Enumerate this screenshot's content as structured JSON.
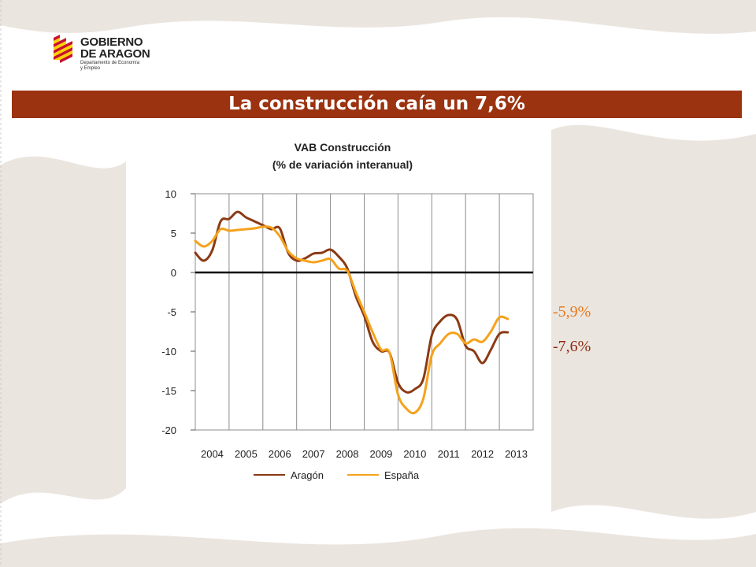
{
  "logo": {
    "name_line1": "GOBIERNO",
    "name_line2": "DE ARAGON",
    "dept_line1": "Departamento de Economía",
    "dept_line2": "y Empleo"
  },
  "header": {
    "title": "La construcción caía un 7,6%"
  },
  "annotations": {
    "espana_last": "-5,9%",
    "aragon_last": "-7,6%"
  },
  "colors": {
    "title_bar": "#9b3310",
    "aragon": "#8b3a14",
    "espana": "#f5a21c",
    "annotation_espana": "#e8781e",
    "annotation_aragon": "#8b2a10"
  },
  "chart_data": {
    "type": "line",
    "title": "VAB Construcción",
    "subtitle": "(% de variación interanual)",
    "xlabel": "",
    "ylabel": "",
    "ylim": [
      -20,
      10
    ],
    "yticks": [
      10,
      5,
      0,
      -5,
      -10,
      -15,
      -20
    ],
    "categories": [
      "2004",
      "2005",
      "2006",
      "2007",
      "2008",
      "2009",
      "2010",
      "2011",
      "2012",
      "2013"
    ],
    "grid": true,
    "legend_position": "bottom",
    "x": [
      2004.0,
      2004.25,
      2004.5,
      2004.75,
      2005.0,
      2005.25,
      2005.5,
      2005.75,
      2006.0,
      2006.25,
      2006.5,
      2006.75,
      2007.0,
      2007.25,
      2007.5,
      2007.75,
      2008.0,
      2008.25,
      2008.5,
      2008.75,
      2009.0,
      2009.25,
      2009.5,
      2009.75,
      2010.0,
      2010.25,
      2010.5,
      2010.75,
      2011.0,
      2011.25,
      2011.5,
      2011.75,
      2012.0,
      2012.25,
      2012.5,
      2012.75,
      2013.0,
      2013.25
    ],
    "series": [
      {
        "name": "Aragón",
        "values": [
          2.5,
          1.5,
          2.8,
          6.5,
          6.8,
          7.7,
          7.0,
          6.5,
          6.0,
          5.5,
          5.6,
          2.5,
          1.5,
          1.8,
          2.4,
          2.5,
          2.9,
          2.0,
          0.5,
          -3.0,
          -5.5,
          -8.8,
          -10.0,
          -10.2,
          -14.0,
          -15.2,
          -14.8,
          -13.5,
          -8.0,
          -6.2,
          -5.4,
          -6.0,
          -9.3,
          -10.0,
          -11.5,
          -9.8,
          -7.8,
          -7.6
        ]
      },
      {
        "name": "España",
        "values": [
          4.0,
          3.3,
          4.0,
          5.5,
          5.3,
          5.4,
          5.5,
          5.6,
          5.8,
          5.7,
          4.6,
          2.7,
          1.8,
          1.5,
          1.3,
          1.5,
          1.7,
          0.5,
          0.2,
          -2.5,
          -5.0,
          -7.6,
          -9.8,
          -10.2,
          -15.5,
          -17.3,
          -17.8,
          -16.0,
          -10.5,
          -9.0,
          -7.8,
          -7.8,
          -9.0,
          -8.5,
          -8.8,
          -7.5,
          -5.7,
          -5.9
        ]
      }
    ]
  }
}
